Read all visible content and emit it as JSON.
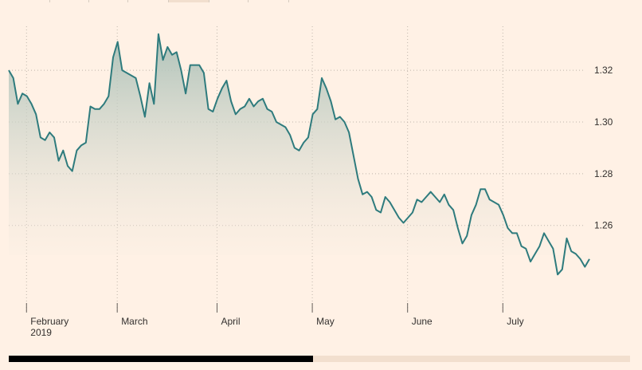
{
  "colors": {
    "background": "#fff1e5",
    "line": "#2e7b7d",
    "area_top": "#a9bfb6",
    "grid": "#bfb5ab",
    "scrubber_thumb": "#000000",
    "scrubber_track": "#f2dfce"
  },
  "chart_data": {
    "type": "area",
    "title": "",
    "xlabel": "",
    "ylabel": "",
    "ylim": [
      1.23,
      1.337
    ],
    "yticks": [
      1.26,
      1.28,
      1.3,
      1.32
    ],
    "ytick_labels": [
      "1.26",
      "1.28",
      "1.30",
      "1.32"
    ],
    "x_ticks": [
      {
        "index": 4,
        "label": "February",
        "sublabel": "2019"
      },
      {
        "index": 24,
        "label": "March",
        "sublabel": ""
      },
      {
        "index": 46,
        "label": "April",
        "sublabel": ""
      },
      {
        "index": 67,
        "label": "May",
        "sublabel": ""
      },
      {
        "index": 88,
        "label": "June",
        "sublabel": ""
      },
      {
        "index": 109,
        "label": "July",
        "sublabel": ""
      }
    ],
    "grid": true,
    "values": [
      1.32,
      1.317,
      1.307,
      1.311,
      1.31,
      1.307,
      1.303,
      1.294,
      1.293,
      1.296,
      1.294,
      1.285,
      1.289,
      1.283,
      1.281,
      1.289,
      1.291,
      1.292,
      1.306,
      1.305,
      1.305,
      1.307,
      1.31,
      1.325,
      1.331,
      1.32,
      1.319,
      1.318,
      1.317,
      1.31,
      1.302,
      1.315,
      1.307,
      1.334,
      1.324,
      1.329,
      1.326,
      1.327,
      1.32,
      1.311,
      1.322,
      1.322,
      1.322,
      1.319,
      1.305,
      1.304,
      1.309,
      1.313,
      1.316,
      1.308,
      1.303,
      1.305,
      1.306,
      1.309,
      1.306,
      1.308,
      1.309,
      1.305,
      1.304,
      1.3,
      1.299,
      1.298,
      1.295,
      1.29,
      1.289,
      1.292,
      1.294,
      1.303,
      1.305,
      1.317,
      1.313,
      1.308,
      1.301,
      1.302,
      1.3,
      1.296,
      1.287,
      1.278,
      1.272,
      1.273,
      1.271,
      1.266,
      1.265,
      1.271,
      1.269,
      1.266,
      1.263,
      1.261,
      1.263,
      1.265,
      1.27,
      1.269,
      1.271,
      1.273,
      1.271,
      1.269,
      1.272,
      1.268,
      1.266,
      1.259,
      1.253,
      1.256,
      1.264,
      1.268,
      1.274,
      1.274,
      1.27,
      1.269,
      1.268,
      1.264,
      1.259,
      1.257,
      1.257,
      1.252,
      1.251,
      1.246,
      1.249,
      1.252,
      1.257,
      1.254,
      1.251,
      1.241,
      1.243,
      1.255,
      1.25,
      1.249,
      1.247,
      1.244,
      1.247
    ]
  }
}
